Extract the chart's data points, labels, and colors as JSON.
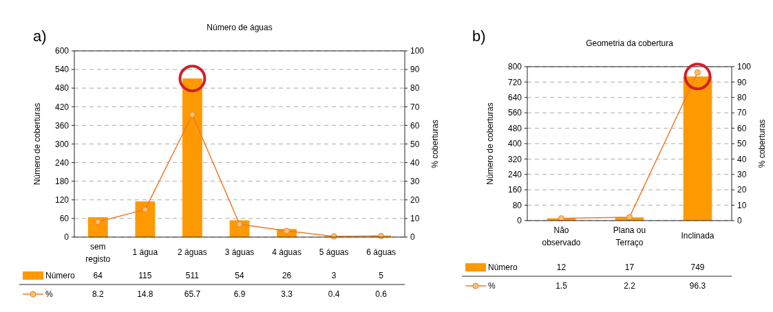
{
  "chart_data": [
    {
      "type": "bar",
      "title": "Número de águas",
      "annotations": [
        "a)"
      ],
      "ylabel": "Número de coberturas",
      "y2label": "% coberturas",
      "categories": [
        "sem registo",
        "1 água",
        "2 águas",
        "3 águas",
        "4 águas",
        "5 águas",
        "6 águas"
      ],
      "series": [
        {
          "name": "Número",
          "color": "#ff9900",
          "values": [
            64,
            115,
            511,
            54,
            26,
            3,
            5
          ]
        },
        {
          "name": "%",
          "type": "line",
          "axis": "y2",
          "color": "#f07828",
          "values": [
            8.2,
            14.8,
            65.7,
            6.9,
            3.3,
            0.4,
            0.6
          ]
        }
      ],
      "ylim": [
        0,
        600
      ],
      "yticks": [
        0,
        60,
        120,
        180,
        240,
        300,
        360,
        420,
        480,
        540,
        600
      ],
      "y2lim": [
        0,
        100
      ],
      "y2ticks": [
        0,
        10,
        20,
        30,
        40,
        50,
        60,
        70,
        80,
        90,
        100
      ],
      "grid": "y",
      "legend": "bottom",
      "marker": "circle",
      "data_labels": true
    },
    {
      "type": "bar",
      "title": "Geometria da cobertura",
      "annotations": [
        "b)"
      ],
      "ylabel": "Número de coberturas",
      "y2label": "% coberturas",
      "categories": [
        "Não observado",
        "Plana ou Terraço",
        "Inclinada"
      ],
      "series": [
        {
          "name": "Número",
          "color": "#ff9900",
          "values": [
            12,
            17,
            749
          ]
        },
        {
          "name": "%",
          "type": "line",
          "axis": "y2",
          "color": "#f07828",
          "values": [
            1.5,
            2.2,
            96.3
          ]
        }
      ],
      "ylim": [
        0,
        800
      ],
      "yticks": [
        0,
        80,
        160,
        240,
        320,
        400,
        480,
        560,
        640,
        720,
        800
      ],
      "y2lim": [
        0,
        100
      ],
      "y2ticks": [
        0,
        10,
        20,
        30,
        40,
        50,
        60,
        70,
        80,
        90,
        100
      ],
      "grid": "y",
      "legend": "bottom",
      "marker": "circle",
      "data_labels": true
    }
  ]
}
